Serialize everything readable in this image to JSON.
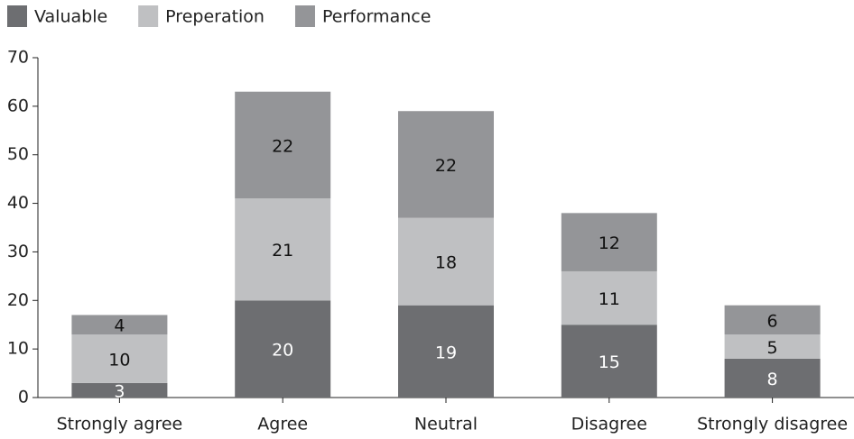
{
  "chart_data": {
    "type": "stacked_bar",
    "categories": [
      "Strongly agree",
      "Agree",
      "Neutral",
      "Disagree",
      "Strongly disagree"
    ],
    "series": [
      {
        "name": "Valuable",
        "color": "#6d6e71",
        "values": [
          3,
          20,
          19,
          15,
          8
        ]
      },
      {
        "name": "Preperation",
        "color": "#bfc0c2",
        "values": [
          10,
          21,
          18,
          11,
          5
        ]
      },
      {
        "name": "Performance",
        "color": "#949598",
        "values": [
          4,
          22,
          22,
          12,
          6
        ]
      }
    ],
    "ylim": [
      0,
      70
    ],
    "yticks": [
      0,
      10,
      20,
      30,
      40,
      50,
      60,
      70
    ],
    "grid": false,
    "legend": "top-left"
  }
}
